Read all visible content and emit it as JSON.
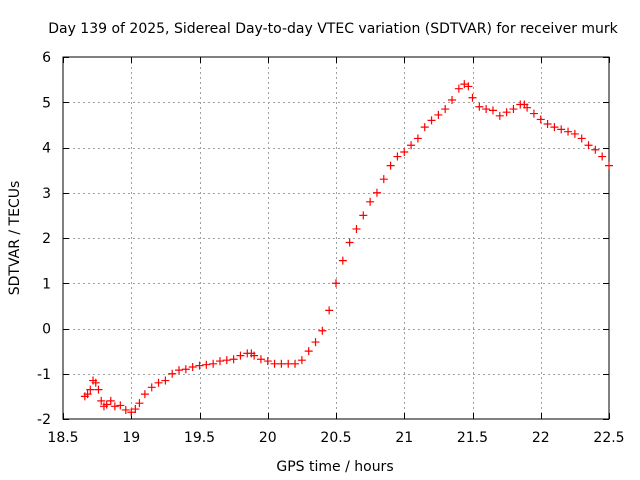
{
  "chart_data": {
    "type": "scatter",
    "title": "Day 139 of 2025, Sidereal Day-to-day VTEC variation (SDTVAR) for receiver murk",
    "xlabel": "GPS time / hours",
    "ylabel": "SDTVAR / TECUs",
    "xlim": [
      18.5,
      22.5
    ],
    "ylim": [
      -2,
      6
    ],
    "xticks": [
      18.5,
      19,
      19.5,
      20,
      20.5,
      21,
      21.5,
      22,
      22.5
    ],
    "xtick_labels": [
      "18.5",
      "19",
      "19.5",
      "20",
      "20.5",
      "21",
      "21.5",
      "22",
      "22.5"
    ],
    "yticks": [
      -2,
      -1,
      0,
      1,
      2,
      3,
      4,
      5,
      6
    ],
    "ytick_labels": [
      "-2",
      "-1",
      "0",
      "1",
      "2",
      "3",
      "4",
      "5",
      "6"
    ],
    "grid": true,
    "marker": "+",
    "color": "#ff0000",
    "series": [
      {
        "x": [
          18.66,
          18.68,
          18.7,
          18.72,
          18.74,
          18.76,
          18.78,
          18.8,
          18.82,
          18.85,
          18.88,
          18.92,
          18.96,
          19.0,
          19.03,
          19.06,
          19.1,
          19.15,
          19.2,
          19.25,
          19.3,
          19.35,
          19.4,
          19.45,
          19.5,
          19.55,
          19.6,
          19.65,
          19.7,
          19.75,
          19.8,
          19.85,
          19.88,
          19.9,
          19.95,
          20.0,
          20.05,
          20.1,
          20.15,
          20.2,
          20.25,
          20.3,
          20.35,
          20.4,
          20.45,
          20.5,
          20.55,
          20.6,
          20.65,
          20.7,
          20.75,
          20.8,
          20.85,
          20.9,
          20.95,
          21.0,
          21.05,
          21.1,
          21.15,
          21.2,
          21.25,
          21.3,
          21.35,
          21.4,
          21.44,
          21.47,
          21.5,
          21.55,
          21.6,
          21.65,
          21.7,
          21.75,
          21.8,
          21.85,
          21.88,
          21.9,
          21.95,
          22.0,
          22.05,
          22.1,
          22.15,
          22.2,
          22.25,
          22.3,
          22.35,
          22.4,
          22.45,
          22.5
        ],
        "y": [
          -1.5,
          -1.45,
          -1.35,
          -1.15,
          -1.2,
          -1.35,
          -1.6,
          -1.72,
          -1.68,
          -1.6,
          -1.72,
          -1.7,
          -1.8,
          -1.85,
          -1.78,
          -1.65,
          -1.45,
          -1.3,
          -1.2,
          -1.15,
          -1.0,
          -0.92,
          -0.9,
          -0.85,
          -0.82,
          -0.8,
          -0.78,
          -0.72,
          -0.7,
          -0.68,
          -0.6,
          -0.55,
          -0.55,
          -0.6,
          -0.68,
          -0.72,
          -0.78,
          -0.78,
          -0.78,
          -0.78,
          -0.7,
          -0.5,
          -0.3,
          -0.05,
          0.4,
          1.0,
          1.5,
          1.9,
          2.2,
          2.5,
          2.8,
          3.0,
          3.3,
          3.6,
          3.8,
          3.9,
          4.05,
          4.2,
          4.45,
          4.6,
          4.72,
          4.85,
          5.05,
          5.3,
          5.4,
          5.35,
          5.1,
          4.9,
          4.85,
          4.82,
          4.7,
          4.78,
          4.85,
          4.95,
          4.95,
          4.88,
          4.75,
          4.62,
          4.52,
          4.45,
          4.4,
          4.35,
          4.3,
          4.2,
          4.05,
          3.95,
          3.8,
          3.6
        ]
      }
    ]
  }
}
